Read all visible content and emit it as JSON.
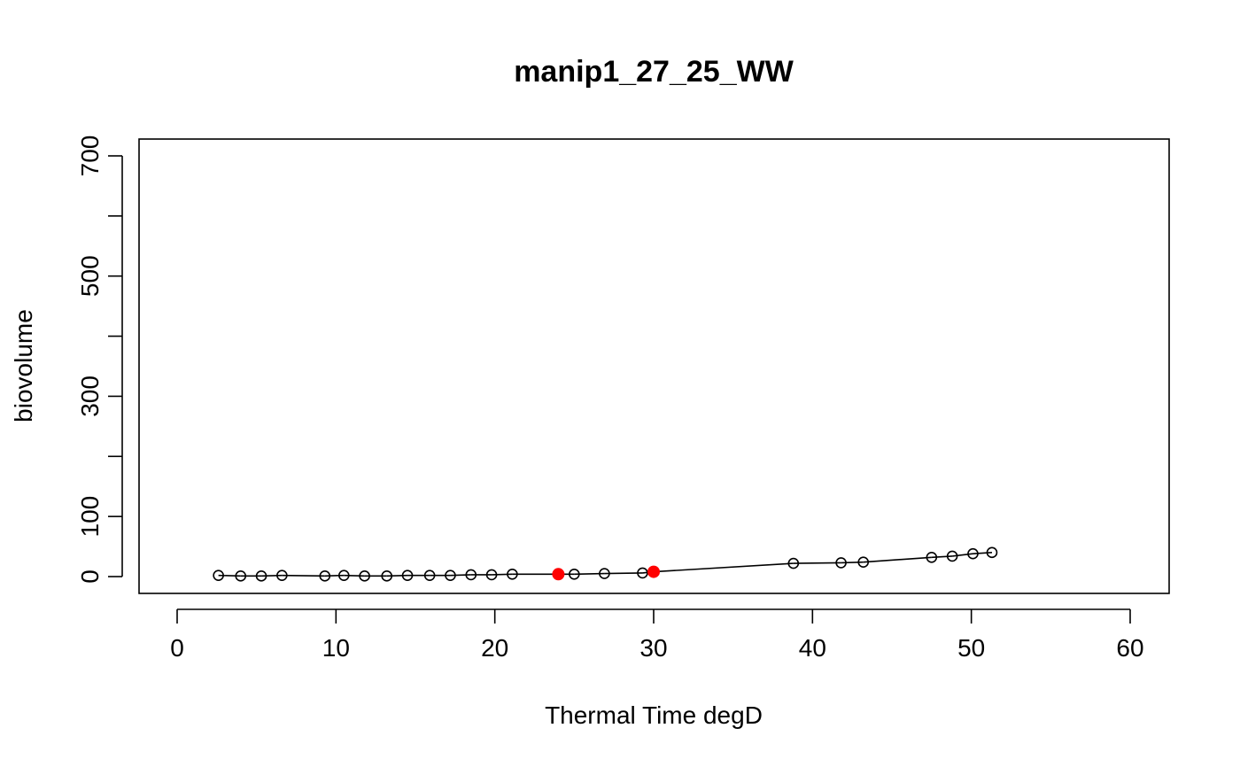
{
  "chart_data": {
    "type": "line",
    "title": "manip1_27_25_WW",
    "xlabel": "Thermal Time degD",
    "ylabel": "biovolume",
    "xlim": [
      0,
      60
    ],
    "ylim": [
      0,
      700
    ],
    "x_ticks": [
      0,
      10,
      20,
      30,
      40,
      50,
      60
    ],
    "y_ticks": [
      0,
      100,
      200,
      300,
      400,
      500,
      600,
      700
    ],
    "y_tick_labels": [
      "0",
      "100",
      "",
      "300",
      "",
      "500",
      "",
      "700"
    ],
    "grid": false,
    "legend": "none",
    "series": [
      {
        "x": [
          2.6,
          4.0,
          5.3,
          6.6,
          9.3,
          10.5,
          11.8,
          13.2,
          14.5,
          15.9,
          17.2,
          18.5,
          19.8,
          21.1,
          24.0,
          25.0,
          26.9,
          29.3,
          30.0,
          38.8,
          41.8,
          43.2,
          47.5,
          48.8,
          50.1,
          51.3
        ],
        "y": [
          2,
          1,
          1,
          2,
          1,
          2,
          1,
          1,
          2,
          2,
          2,
          3,
          3,
          4,
          4,
          4,
          5,
          6,
          8,
          22,
          23,
          24,
          32,
          34,
          38,
          40
        ],
        "line_color": "#000000",
        "marker": "open-circle",
        "marker_color": "#000000"
      }
    ],
    "highlighted_points": {
      "x": [
        24.0,
        30.0
      ],
      "y": [
        4,
        8
      ],
      "color": "#ff0000",
      "marker": "filled-circle"
    }
  }
}
